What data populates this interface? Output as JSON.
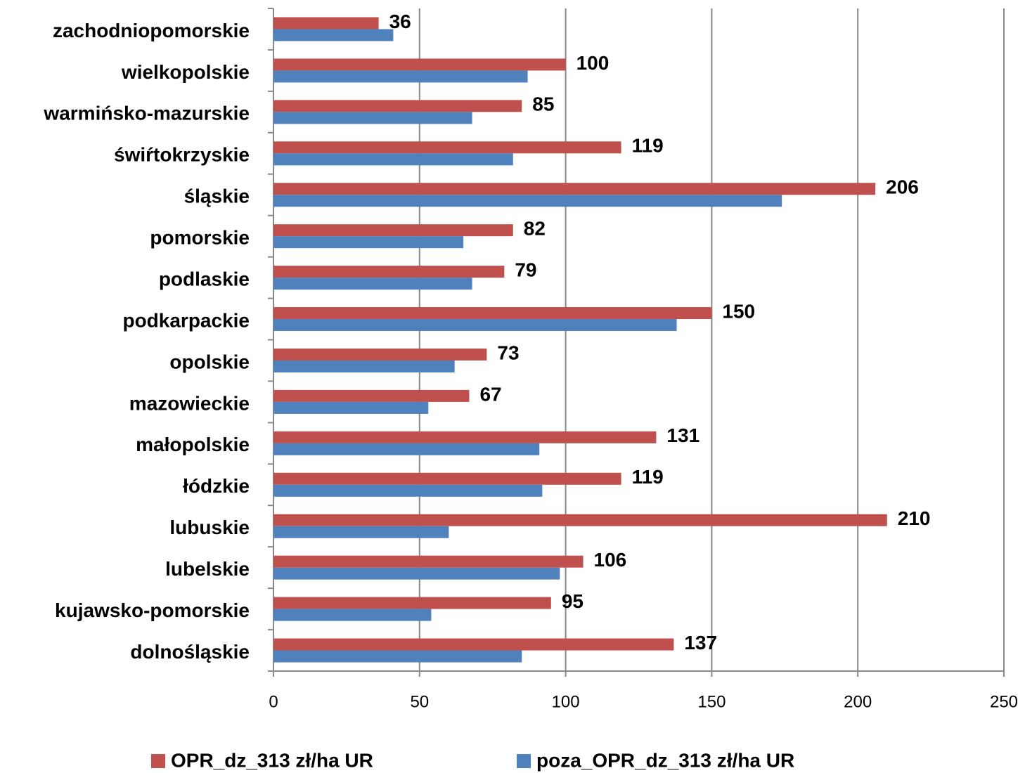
{
  "chart_data": {
    "type": "bar",
    "orientation": "horizontal",
    "categories": [
      "zachodniopomorskie",
      "wielkopolskie",
      "warmińsko-mazurskie",
      "świŕtokrzyskie",
      "śląskie",
      "pomorskie",
      "podlaskie",
      "podkarpackie",
      "opolskie",
      "mazowieckie",
      "małopolskie",
      "łódzkie",
      "lubuskie",
      "lubelskie",
      "kujawsko-pomorskie",
      "dolnośląskie"
    ],
    "series": [
      {
        "name": "OPR_dz_313 zł/ha UR",
        "color": "#c0504d",
        "values": [
          36,
          100,
          85,
          119,
          206,
          82,
          79,
          150,
          73,
          67,
          131,
          119,
          210,
          106,
          95,
          137
        ],
        "show_value_labels": true
      },
      {
        "name": "poza_OPR_dz_313 zł/ha UR",
        "color": "#4f81bd",
        "values": [
          41,
          87,
          68,
          82,
          174,
          65,
          68,
          138,
          62,
          53,
          91,
          92,
          60,
          98,
          54,
          85
        ],
        "show_value_labels": false
      }
    ],
    "xlim": [
      0,
      250
    ],
    "xticks": [
      0,
      50,
      100,
      150,
      200,
      250
    ],
    "grid": true,
    "legend": "bottom"
  }
}
